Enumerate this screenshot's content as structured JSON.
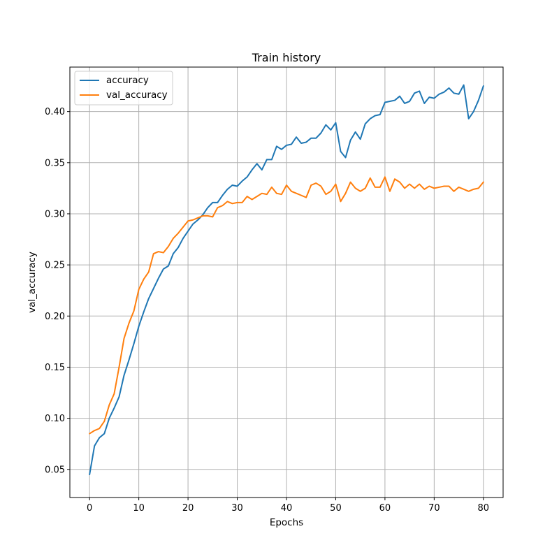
{
  "chart_data": {
    "type": "line",
    "title": "Train history",
    "xlabel": "Epochs",
    "ylabel": "val_accuracy",
    "xlim": [
      -4,
      84
    ],
    "ylim": [
      0.0225,
      0.4435
    ],
    "xticks": [
      0,
      10,
      20,
      30,
      40,
      50,
      60,
      70,
      80
    ],
    "yticks": [
      0.05,
      0.1,
      0.15,
      0.2,
      0.25,
      0.3,
      0.35,
      0.4
    ],
    "grid": true,
    "legend_position": "upper-left",
    "series": [
      {
        "name": "accuracy",
        "color": "#1f77b4",
        "values": [
          0.045,
          0.073,
          0.081,
          0.085,
          0.1,
          0.11,
          0.121,
          0.142,
          0.157,
          0.173,
          0.19,
          0.204,
          0.217,
          0.227,
          0.237,
          0.246,
          0.249,
          0.261,
          0.267,
          0.276,
          0.283,
          0.29,
          0.294,
          0.299,
          0.306,
          0.311,
          0.311,
          0.318,
          0.324,
          0.328,
          0.327,
          0.332,
          0.336,
          0.343,
          0.349,
          0.343,
          0.353,
          0.353,
          0.366,
          0.363,
          0.367,
          0.368,
          0.375,
          0.369,
          0.37,
          0.374,
          0.374,
          0.379,
          0.387,
          0.382,
          0.389,
          0.361,
          0.355,
          0.372,
          0.38,
          0.373,
          0.388,
          0.393,
          0.396,
          0.397,
          0.409,
          0.41,
          0.411,
          0.415,
          0.408,
          0.41,
          0.418,
          0.42,
          0.408,
          0.414,
          0.413,
          0.417,
          0.419,
          0.423,
          0.418,
          0.417,
          0.426,
          0.393,
          0.4,
          0.411,
          0.425
        ]
      },
      {
        "name": "val_accuracy",
        "color": "#ff7f0e",
        "values": [
          0.085,
          0.088,
          0.09,
          0.097,
          0.113,
          0.124,
          0.15,
          0.178,
          0.193,
          0.205,
          0.226,
          0.236,
          0.243,
          0.261,
          0.263,
          0.262,
          0.268,
          0.276,
          0.281,
          0.287,
          0.293,
          0.294,
          0.296,
          0.298,
          0.298,
          0.297,
          0.306,
          0.308,
          0.312,
          0.31,
          0.311,
          0.311,
          0.317,
          0.314,
          0.317,
          0.32,
          0.319,
          0.326,
          0.32,
          0.319,
          0.328,
          0.322,
          0.32,
          0.318,
          0.316,
          0.328,
          0.33,
          0.327,
          0.319,
          0.322,
          0.329,
          0.312,
          0.32,
          0.331,
          0.325,
          0.322,
          0.325,
          0.335,
          0.326,
          0.326,
          0.336,
          0.322,
          0.334,
          0.331,
          0.325,
          0.329,
          0.325,
          0.329,
          0.324,
          0.327,
          0.325,
          0.326,
          0.327,
          0.327,
          0.322,
          0.326,
          0.324,
          0.322,
          0.324,
          0.325,
          0.331
        ]
      }
    ]
  }
}
